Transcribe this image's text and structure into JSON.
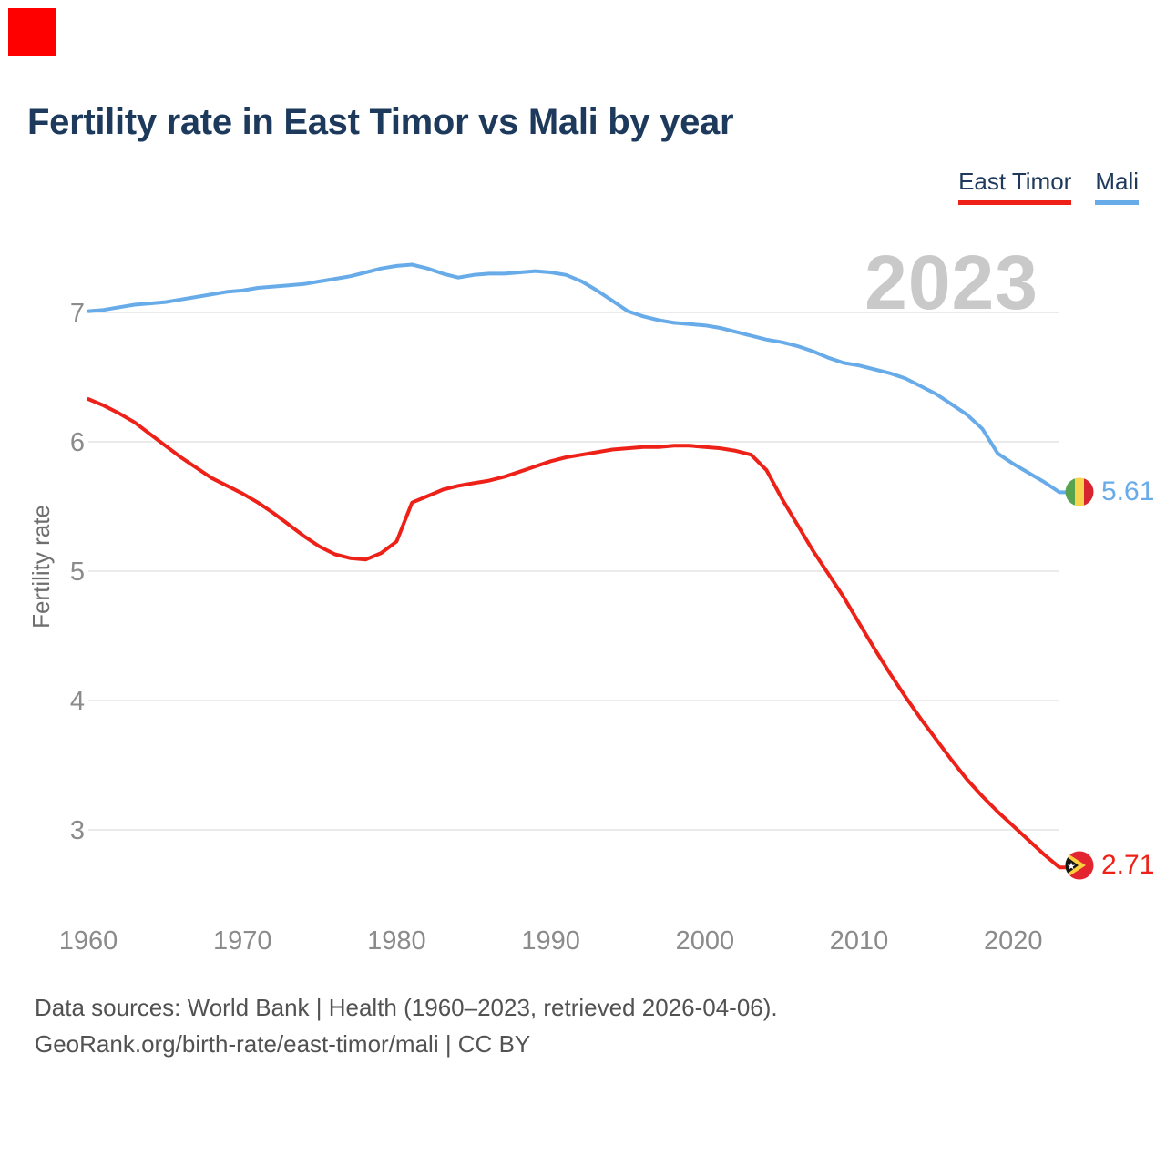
{
  "title": "Fertility rate in East Timor vs Mali by year",
  "overlay": {
    "marker_color": "#fe0000"
  },
  "legend": {
    "items": [
      {
        "label": "East Timor",
        "color": "#ee2118"
      },
      {
        "label": "Mali",
        "color": "#68abe9"
      }
    ]
  },
  "watermark": "2023",
  "ylabel": "Fertility rate",
  "end_labels": {
    "mali": "5.61",
    "east_timor": "2.71"
  },
  "footer": {
    "line1": "Data sources: World Bank | Health (1960–2023, retrieved 2026-04-06).",
    "line2": "GeoRank.org/birth-rate/east-timor/mali | CC BY"
  },
  "chart_data": {
    "type": "line",
    "title": "Fertility rate in East Timor vs Mali by year",
    "xlabel": "",
    "ylabel": "Fertility rate",
    "xlim": [
      1960,
      2023
    ],
    "ylim": [
      2.5,
      7.5
    ],
    "grid": "horizontal-only",
    "legend_position": "top-right",
    "xticks": [
      1960,
      1970,
      1980,
      1990,
      2000,
      2010,
      2020
    ],
    "yticks": [
      3,
      4,
      5,
      6,
      7
    ],
    "end_value_labels": {
      "East Timor": "2.71",
      "Mali": "5.61"
    },
    "x": [
      1960,
      1961,
      1962,
      1963,
      1964,
      1965,
      1966,
      1967,
      1968,
      1969,
      1970,
      1971,
      1972,
      1973,
      1974,
      1975,
      1976,
      1977,
      1978,
      1979,
      1980,
      1981,
      1982,
      1983,
      1984,
      1985,
      1986,
      1987,
      1988,
      1989,
      1990,
      1991,
      1992,
      1993,
      1994,
      1995,
      1996,
      1997,
      1998,
      1999,
      2000,
      2001,
      2002,
      2003,
      2004,
      2005,
      2006,
      2007,
      2008,
      2009,
      2010,
      2011,
      2012,
      2013,
      2014,
      2015,
      2016,
      2017,
      2018,
      2019,
      2020,
      2021,
      2022,
      2023
    ],
    "series": [
      {
        "name": "East Timor",
        "color": "#ee2118",
        "values": [
          6.33,
          6.28,
          6.22,
          6.15,
          6.06,
          5.97,
          5.88,
          5.8,
          5.72,
          5.66,
          5.6,
          5.53,
          5.45,
          5.36,
          5.27,
          5.19,
          5.13,
          5.1,
          5.09,
          5.14,
          5.23,
          5.53,
          5.58,
          5.63,
          5.66,
          5.68,
          5.7,
          5.73,
          5.77,
          5.81,
          5.85,
          5.88,
          5.9,
          5.92,
          5.94,
          5.95,
          5.96,
          5.96,
          5.97,
          5.97,
          5.96,
          5.95,
          5.93,
          5.9,
          5.78,
          5.56,
          5.36,
          5.16,
          4.98,
          4.8,
          4.6,
          4.4,
          4.21,
          4.03,
          3.86,
          3.7,
          3.54,
          3.39,
          3.26,
          3.14,
          3.03,
          2.92,
          2.81,
          2.71
        ]
      },
      {
        "name": "Mali",
        "color": "#68abe9",
        "values": [
          7.01,
          7.02,
          7.04,
          7.06,
          7.07,
          7.08,
          7.1,
          7.12,
          7.14,
          7.16,
          7.17,
          7.19,
          7.2,
          7.21,
          7.22,
          7.24,
          7.26,
          7.28,
          7.31,
          7.34,
          7.36,
          7.37,
          7.34,
          7.3,
          7.27,
          7.29,
          7.3,
          7.3,
          7.31,
          7.32,
          7.31,
          7.29,
          7.24,
          7.17,
          7.09,
          7.01,
          6.97,
          6.94,
          6.92,
          6.91,
          6.9,
          6.88,
          6.85,
          6.82,
          6.79,
          6.77,
          6.74,
          6.7,
          6.65,
          6.61,
          6.59,
          6.56,
          6.53,
          6.49,
          6.43,
          6.37,
          6.29,
          6.21,
          6.1,
          5.91,
          5.83,
          5.76,
          5.69,
          5.61
        ]
      }
    ]
  }
}
